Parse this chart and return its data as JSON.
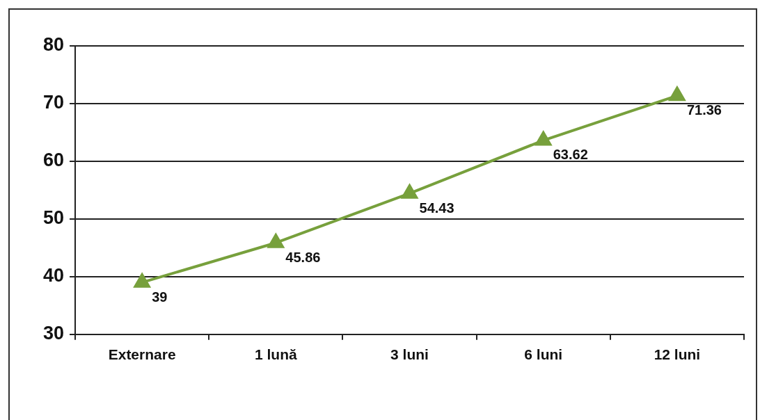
{
  "chart_data": {
    "type": "line",
    "categories": [
      "Externare",
      "1 lună",
      "3 luni",
      "6 luni",
      "12 luni"
    ],
    "series": [
      {
        "color": "#77a03c",
        "values": [
          39,
          45.86,
          54.43,
          63.62,
          71.36
        ]
      }
    ],
    "ylim": [
      30,
      80
    ],
    "yticks": [
      30,
      40,
      50,
      60,
      70,
      80
    ],
    "grid": "y",
    "legend": false,
    "marker": "triangle",
    "line_style": "solid",
    "data_labels": true
  }
}
